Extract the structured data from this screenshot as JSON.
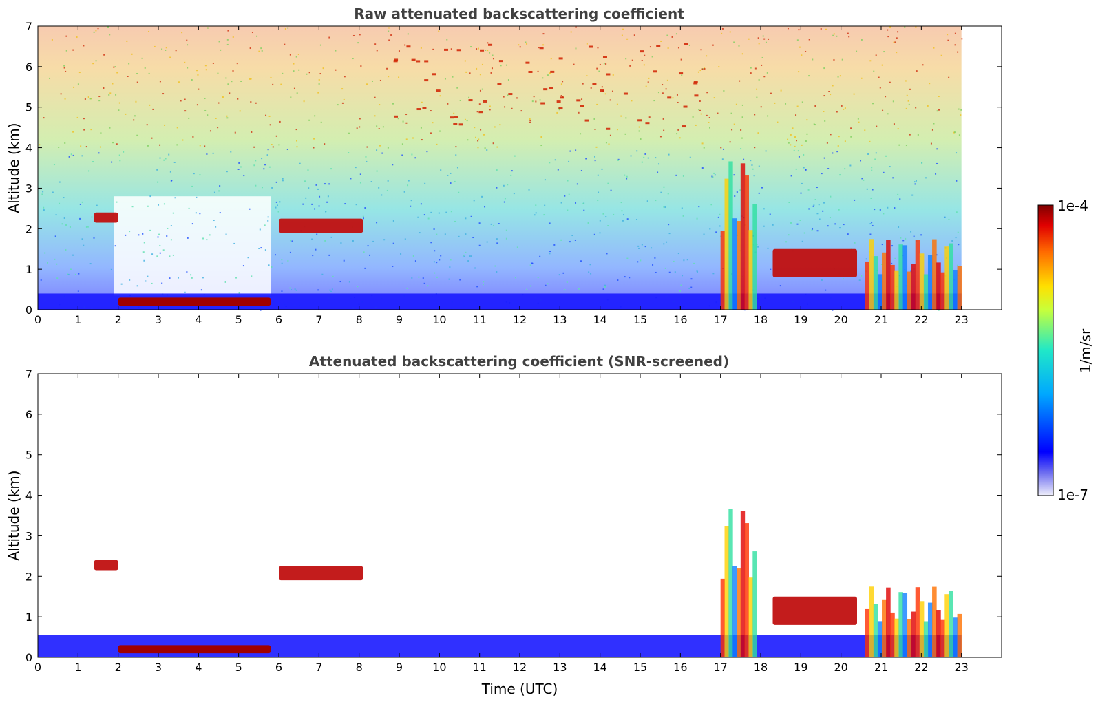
{
  "chart_data": [
    {
      "type": "heatmap",
      "title": "Raw attenuated backscattering coefficient",
      "xlabel": "",
      "ylabel": "Altitude (km)",
      "xlim": [
        0,
        24
      ],
      "ylim": [
        0,
        7
      ],
      "x_ticks": [
        "0",
        "1",
        "2",
        "3",
        "4",
        "5",
        "6",
        "7",
        "8",
        "9",
        "10",
        "11",
        "12",
        "13",
        "14",
        "15",
        "16",
        "17",
        "18",
        "19",
        "20",
        "21",
        "22",
        "23"
      ],
      "y_ticks": [
        "0",
        "1",
        "2",
        "3",
        "4",
        "5",
        "6",
        "7"
      ],
      "data_end_hour": 23,
      "features": [
        {
          "kind": "boundary-layer",
          "x": [
            0,
            23
          ],
          "y": [
            0,
            0.4
          ]
        },
        {
          "kind": "fog-layer",
          "x": [
            2,
            5.8
          ],
          "y": [
            0.1,
            0.3
          ]
        },
        {
          "kind": "cloud",
          "x": [
            1.4,
            2.0
          ],
          "y": [
            2.15,
            2.4
          ]
        },
        {
          "kind": "cloud",
          "x": [
            6.0,
            8.1
          ],
          "y": [
            1.9,
            2.25
          ]
        },
        {
          "kind": "cloud",
          "x": [
            18.3,
            20.4
          ],
          "y": [
            0.8,
            1.5
          ]
        },
        {
          "kind": "precipitation",
          "x": [
            17.0,
            17.9
          ],
          "y": [
            0,
            3.8
          ]
        },
        {
          "kind": "precipitation",
          "x": [
            20.6,
            23.0
          ],
          "y": [
            0,
            1.75
          ]
        },
        {
          "kind": "cirrus",
          "x": [
            8.5,
            16.5
          ],
          "y": [
            4.4,
            6.6
          ]
        }
      ]
    },
    {
      "type": "heatmap",
      "title": "Attenuated backscattering coefficient (SNR-screened)",
      "xlabel": "Time (UTC)",
      "ylabel": "Altitude (km)",
      "xlim": [
        0,
        24
      ],
      "ylim": [
        0,
        7
      ],
      "x_ticks": [
        "0",
        "1",
        "2",
        "3",
        "4",
        "5",
        "6",
        "7",
        "8",
        "9",
        "10",
        "11",
        "12",
        "13",
        "14",
        "15",
        "16",
        "17",
        "18",
        "19",
        "20",
        "21",
        "22",
        "23"
      ],
      "y_ticks": [
        "0",
        "1",
        "2",
        "3",
        "4",
        "5",
        "6",
        "7"
      ],
      "data_end_hour": 23,
      "features": [
        {
          "kind": "boundary-layer",
          "x": [
            0,
            23
          ],
          "y": [
            0,
            0.55
          ]
        },
        {
          "kind": "fog-layer",
          "x": [
            2,
            5.8
          ],
          "y": [
            0.1,
            0.3
          ]
        },
        {
          "kind": "cloud",
          "x": [
            1.4,
            2.0
          ],
          "y": [
            2.15,
            2.4
          ]
        },
        {
          "kind": "cloud",
          "x": [
            6.0,
            8.1
          ],
          "y": [
            1.9,
            2.25
          ]
        },
        {
          "kind": "cloud",
          "x": [
            18.3,
            20.4
          ],
          "y": [
            0.8,
            1.5
          ]
        },
        {
          "kind": "precipitation",
          "x": [
            17.0,
            17.9
          ],
          "y": [
            0,
            3.8
          ]
        },
        {
          "kind": "precipitation",
          "x": [
            20.6,
            23.0
          ],
          "y": [
            0,
            1.75
          ]
        }
      ]
    }
  ],
  "colorbar": {
    "label": "1/m/sr",
    "max_label": "1e-4",
    "min_label": "1e-7",
    "colormap": "jet",
    "scale": "log",
    "range": [
      1e-07,
      0.0001
    ]
  }
}
